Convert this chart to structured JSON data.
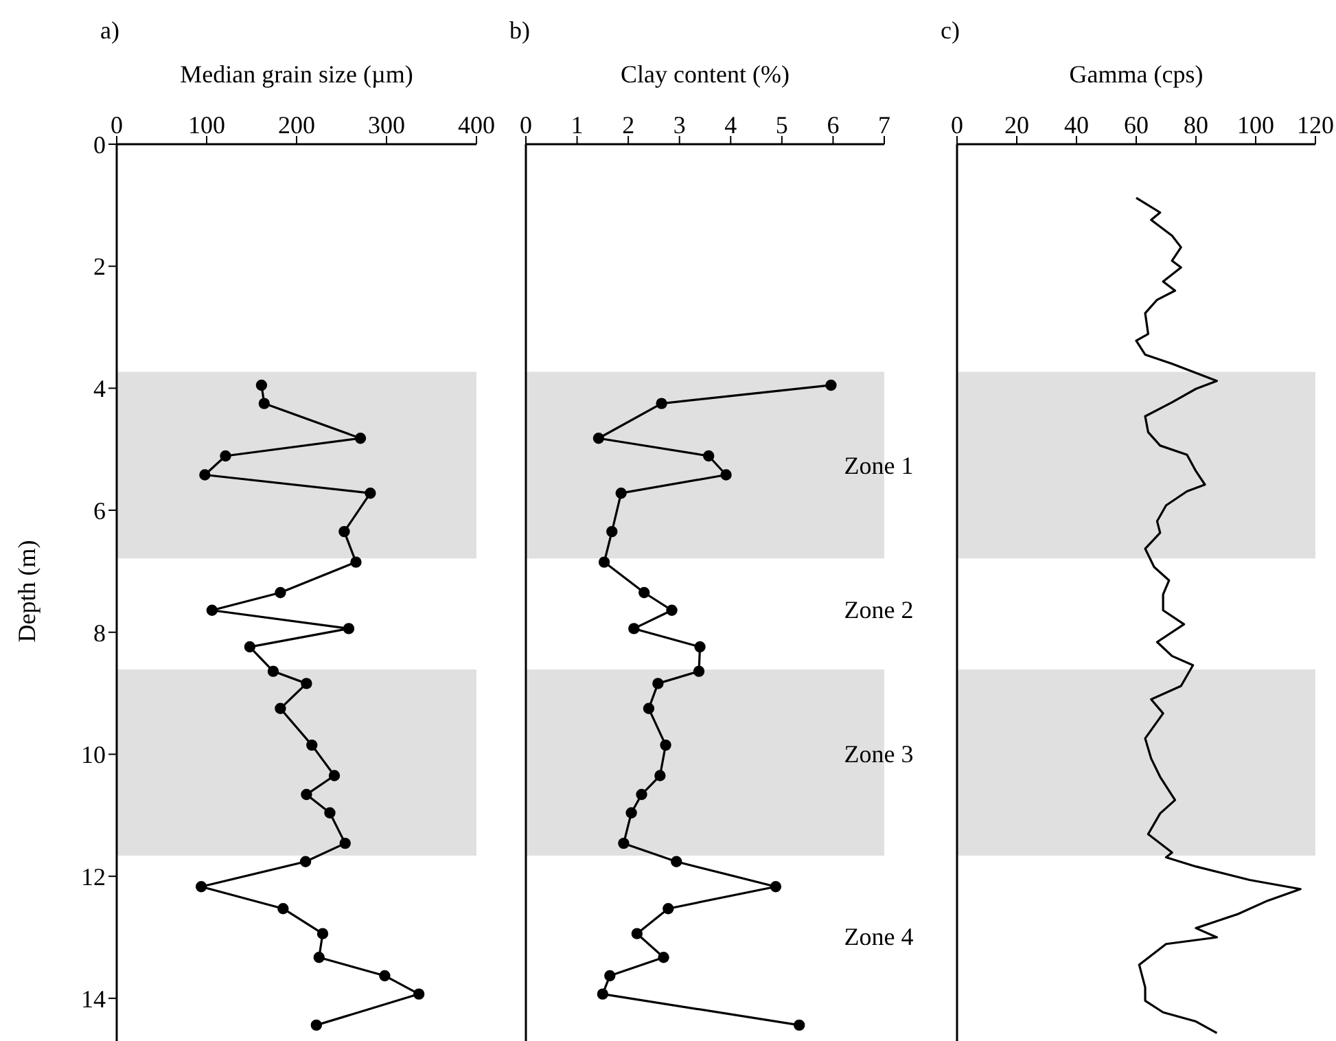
{
  "chart_data": [
    {
      "type": "line",
      "title": "a)",
      "xlabel": "Median grain size (µm)",
      "ylabel": "Depth (m)",
      "orientation": "horizontal",
      "marker": "circle",
      "line_style": "solid",
      "xlim": [
        0,
        400
      ],
      "xticks": [
        0,
        100,
        200,
        300,
        400
      ],
      "ylim": [
        14.7,
        0
      ],
      "yticks": [
        0,
        2,
        4,
        6,
        8,
        10,
        12,
        14
      ],
      "bands": [
        {
          "axis": "y",
          "from": 3.73,
          "to": 6.79,
          "color": "#e0e0e0"
        },
        {
          "axis": "y",
          "from": 8.61,
          "to": 11.66,
          "color": "#e0e0e0"
        }
      ],
      "series": [
        {
          "color": "#000000",
          "x": [
            3.95,
            4.25,
            4.82,
            5.11,
            5.42,
            5.72,
            6.35,
            6.85,
            7.35,
            7.64,
            7.94,
            8.24,
            8.64,
            8.84,
            9.25,
            9.85,
            10.35,
            10.66,
            10.96,
            11.46,
            11.76,
            12.17,
            12.53,
            12.94,
            13.33,
            13.63,
            13.93,
            14.44
          ],
          "values": [
            161,
            164,
            271,
            121,
            98,
            282,
            253,
            266,
            182,
            106,
            258,
            148,
            174,
            211,
            182,
            217,
            242,
            211,
            237,
            254,
            210,
            94,
            185,
            229,
            225,
            298,
            336,
            222
          ]
        }
      ]
    },
    {
      "type": "line",
      "title": "b)",
      "xlabel": "Clay content (%)",
      "orientation": "horizontal",
      "marker": "circle",
      "line_style": "solid",
      "tick_labels": "x",
      "xlim": [
        0,
        7
      ],
      "xticks": [
        0,
        1,
        2,
        3,
        4,
        5,
        6,
        7
      ],
      "ylim": [
        14.7,
        0
      ],
      "yticks": [
        0,
        2,
        4,
        6,
        8,
        10,
        12,
        14
      ],
      "bands": [
        {
          "axis": "y",
          "from": 3.73,
          "to": 6.79,
          "color": "#e0e0e0"
        },
        {
          "axis": "y",
          "from": 8.61,
          "to": 11.66,
          "color": "#e0e0e0"
        }
      ],
      "annotations": [
        "Zone 1",
        "Zone 2",
        "Zone 3",
        "Zone 4"
      ],
      "series": [
        {
          "color": "#000000",
          "x": [
            3.95,
            4.25,
            4.82,
            5.11,
            5.42,
            5.72,
            6.35,
            6.85,
            7.35,
            7.64,
            7.94,
            8.24,
            8.64,
            8.84,
            9.25,
            9.85,
            10.35,
            10.66,
            10.96,
            11.46,
            11.76,
            12.17,
            12.53,
            12.94,
            13.33,
            13.63,
            13.93,
            14.44
          ],
          "values": [
            5.96,
            2.65,
            1.42,
            3.57,
            3.91,
            1.86,
            1.68,
            1.53,
            2.31,
            2.85,
            2.11,
            3.4,
            3.38,
            2.58,
            2.4,
            2.73,
            2.62,
            2.26,
            2.06,
            1.91,
            2.94,
            4.88,
            2.78,
            2.17,
            2.69,
            1.64,
            1.5,
            5.34
          ]
        }
      ]
    },
    {
      "type": "line",
      "title": "c)",
      "xlabel": "Gamma (cps)",
      "orientation": "horizontal",
      "marker": "none",
      "line_style": "solid",
      "tick_labels": "x",
      "xlim": [
        0,
        120
      ],
      "xticks": [
        0,
        20,
        40,
        60,
        80,
        100,
        120
      ],
      "ylim": [
        14.7,
        0
      ],
      "yticks": [
        0,
        2,
        4,
        6,
        8,
        10,
        12,
        14
      ],
      "bands": [
        {
          "axis": "y",
          "from": 3.73,
          "to": 6.79,
          "color": "#e0e0e0"
        },
        {
          "axis": "y",
          "from": 8.61,
          "to": 11.66,
          "color": "#e0e0e0"
        }
      ],
      "series": [
        {
          "color": "#000000",
          "x": [
            0.88,
            0.97,
            1.12,
            1.24,
            1.5,
            1.69,
            1.91,
            2.02,
            2.25,
            2.4,
            2.55,
            2.77,
            3.11,
            3.22,
            3.45,
            3.6,
            3.88,
            4.01,
            4.23,
            4.46,
            4.72,
            4.94,
            5.09,
            5.36,
            5.58,
            5.69,
            5.92,
            6.18,
            6.37,
            6.63,
            6.93,
            7.15,
            7.38,
            7.64,
            7.87,
            8.16,
            8.39,
            8.54,
            8.88,
            9.1,
            9.33,
            9.74,
            10.07,
            10.37,
            10.75,
            10.97,
            11.31,
            11.61,
            11.69,
            11.84,
            12.06,
            12.21,
            12.4,
            12.62,
            12.85,
            13.0,
            13.11,
            13.45,
            13.82,
            14.04,
            14.23,
            14.38,
            14.57
          ],
          "values": [
            60,
            63,
            68,
            65,
            72,
            75,
            72,
            75,
            69,
            73,
            67,
            63,
            64,
            60,
            63,
            72,
            87,
            80,
            72,
            63,
            64,
            68,
            77,
            80,
            83,
            77,
            70,
            67,
            68,
            63,
            66,
            71,
            69,
            69,
            76,
            67,
            72,
            79,
            75,
            65,
            69,
            63,
            65,
            68,
            73,
            68,
            64,
            72,
            70,
            80,
            98,
            115,
            104,
            94,
            80,
            87,
            70,
            61,
            63,
            63,
            69,
            80,
            87
          ]
        }
      ]
    }
  ]
}
